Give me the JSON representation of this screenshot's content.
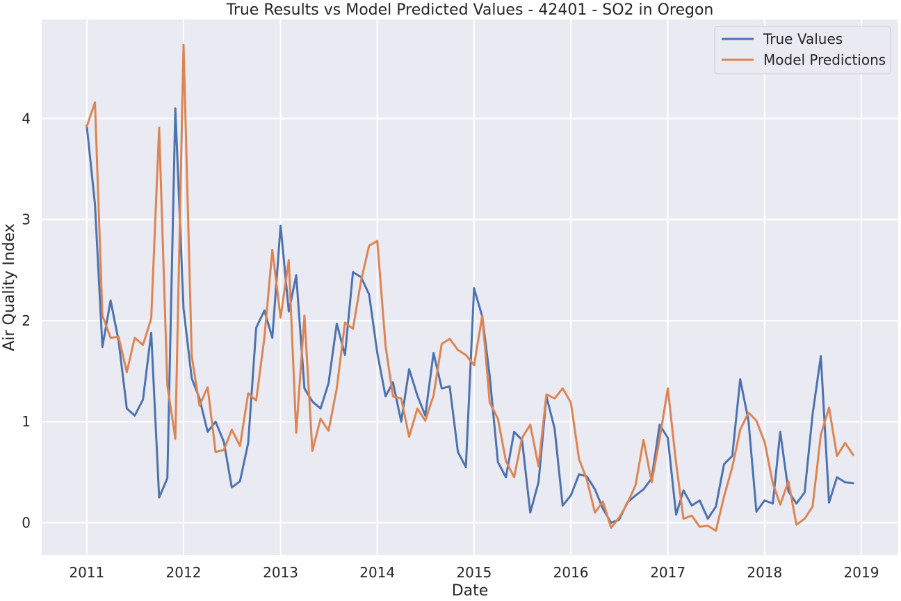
{
  "chart_data": {
    "type": "line",
    "title": "True Results vs Model Predicted Values - 42401 - SO2 in Oregon",
    "xlabel": "Date",
    "ylabel": "Air Quality Index",
    "x_ticks": [
      "2011",
      "2012",
      "2013",
      "2014",
      "2015",
      "2016",
      "2017",
      "2018",
      "2019"
    ],
    "y_ticks": [
      "0",
      "1",
      "2",
      "3",
      "4"
    ],
    "xlim": [
      "2010-07-15",
      "2019-05-20"
    ],
    "ylim": [
      -0.32,
      4.98
    ],
    "grid": true,
    "legend_position": "top-right",
    "x": [
      "2011-01",
      "2011-02",
      "2011-03",
      "2011-04",
      "2011-05",
      "2011-06",
      "2011-07",
      "2011-08",
      "2011-09",
      "2011-10",
      "2011-11",
      "2011-12",
      "2012-01",
      "2012-02",
      "2012-03",
      "2012-04",
      "2012-05",
      "2012-06",
      "2012-07",
      "2012-08",
      "2012-09",
      "2012-10",
      "2012-11",
      "2012-12",
      "2013-01",
      "2013-02",
      "2013-03",
      "2013-04",
      "2013-05",
      "2013-06",
      "2013-07",
      "2013-08",
      "2013-09",
      "2013-10",
      "2013-11",
      "2013-12",
      "2014-01",
      "2014-02",
      "2014-03",
      "2014-04",
      "2014-05",
      "2014-06",
      "2014-07",
      "2014-08",
      "2014-09",
      "2014-10",
      "2014-11",
      "2014-12",
      "2015-01",
      "2015-02",
      "2015-03",
      "2015-04",
      "2015-05",
      "2015-06",
      "2015-07",
      "2015-08",
      "2015-09",
      "2015-10",
      "2015-11",
      "2015-12",
      "2016-01",
      "2016-02",
      "2016-03",
      "2016-04",
      "2016-05",
      "2016-06",
      "2016-07",
      "2016-08",
      "2016-09",
      "2016-10",
      "2016-11",
      "2016-12",
      "2017-01",
      "2017-02",
      "2017-03",
      "2017-04",
      "2017-05",
      "2017-06",
      "2017-07",
      "2017-08",
      "2017-09",
      "2017-10",
      "2017-11",
      "2017-12",
      "2018-01",
      "2018-02",
      "2018-03",
      "2018-04",
      "2018-05",
      "2018-06",
      "2018-07",
      "2018-08",
      "2018-09",
      "2018-10",
      "2018-11",
      "2018-12"
    ],
    "series": [
      {
        "name": "True Values",
        "color": "#4c72b0",
        "values": [
          3.93,
          3.15,
          1.74,
          2.2,
          1.8,
          1.13,
          1.06,
          1.22,
          1.88,
          0.25,
          0.44,
          4.1,
          2.12,
          1.43,
          1.23,
          0.9,
          1.0,
          0.8,
          0.35,
          0.41,
          0.79,
          1.93,
          2.1,
          1.83,
          2.94,
          2.09,
          2.45,
          1.33,
          1.2,
          1.13,
          1.38,
          1.97,
          1.66,
          2.48,
          2.43,
          2.26,
          1.68,
          1.25,
          1.39,
          1.0,
          1.52,
          1.26,
          1.06,
          1.68,
          1.33,
          1.35,
          0.7,
          0.55,
          2.32,
          2.04,
          1.45,
          0.6,
          0.45,
          0.9,
          0.82,
          0.1,
          0.4,
          1.25,
          0.93,
          0.17,
          0.27,
          0.48,
          0.46,
          0.33,
          0.14,
          0.0,
          0.03,
          0.2,
          0.27,
          0.33,
          0.44,
          0.97,
          0.84,
          0.08,
          0.32,
          0.17,
          0.22,
          0.04,
          0.16,
          0.58,
          0.66,
          1.42,
          1.01,
          0.11,
          0.22,
          0.19,
          0.9,
          0.31,
          0.19,
          0.3,
          1.07,
          1.65,
          0.2,
          0.45,
          0.4,
          0.39
        ]
      },
      {
        "name": "Model Predictions",
        "color": "#dd8452",
        "values": [
          3.92,
          4.16,
          2.05,
          1.83,
          1.84,
          1.49,
          1.83,
          1.76,
          2.02,
          3.91,
          1.36,
          0.83,
          4.73,
          1.65,
          1.16,
          1.34,
          0.7,
          0.72,
          0.92,
          0.76,
          1.28,
          1.21,
          1.83,
          2.7,
          2.03,
          2.6,
          0.89,
          2.05,
          0.71,
          1.03,
          0.91,
          1.33,
          1.98,
          1.92,
          2.4,
          2.74,
          2.79,
          1.75,
          1.25,
          1.23,
          0.85,
          1.13,
          1.01,
          1.26,
          1.77,
          1.82,
          1.71,
          1.66,
          1.56,
          2.05,
          1.19,
          1.03,
          0.61,
          0.45,
          0.84,
          0.97,
          0.56,
          1.27,
          1.23,
          1.33,
          1.19,
          0.63,
          0.43,
          0.1,
          0.21,
          -0.05,
          0.05,
          0.19,
          0.37,
          0.82,
          0.4,
          0.83,
          1.33,
          0.59,
          0.04,
          0.07,
          -0.04,
          -0.03,
          -0.08,
          0.26,
          0.55,
          0.92,
          1.09,
          1.01,
          0.8,
          0.39,
          0.18,
          0.41,
          -0.02,
          0.04,
          0.16,
          0.87,
          1.14,
          0.66,
          0.79,
          0.67
        ]
      }
    ]
  }
}
